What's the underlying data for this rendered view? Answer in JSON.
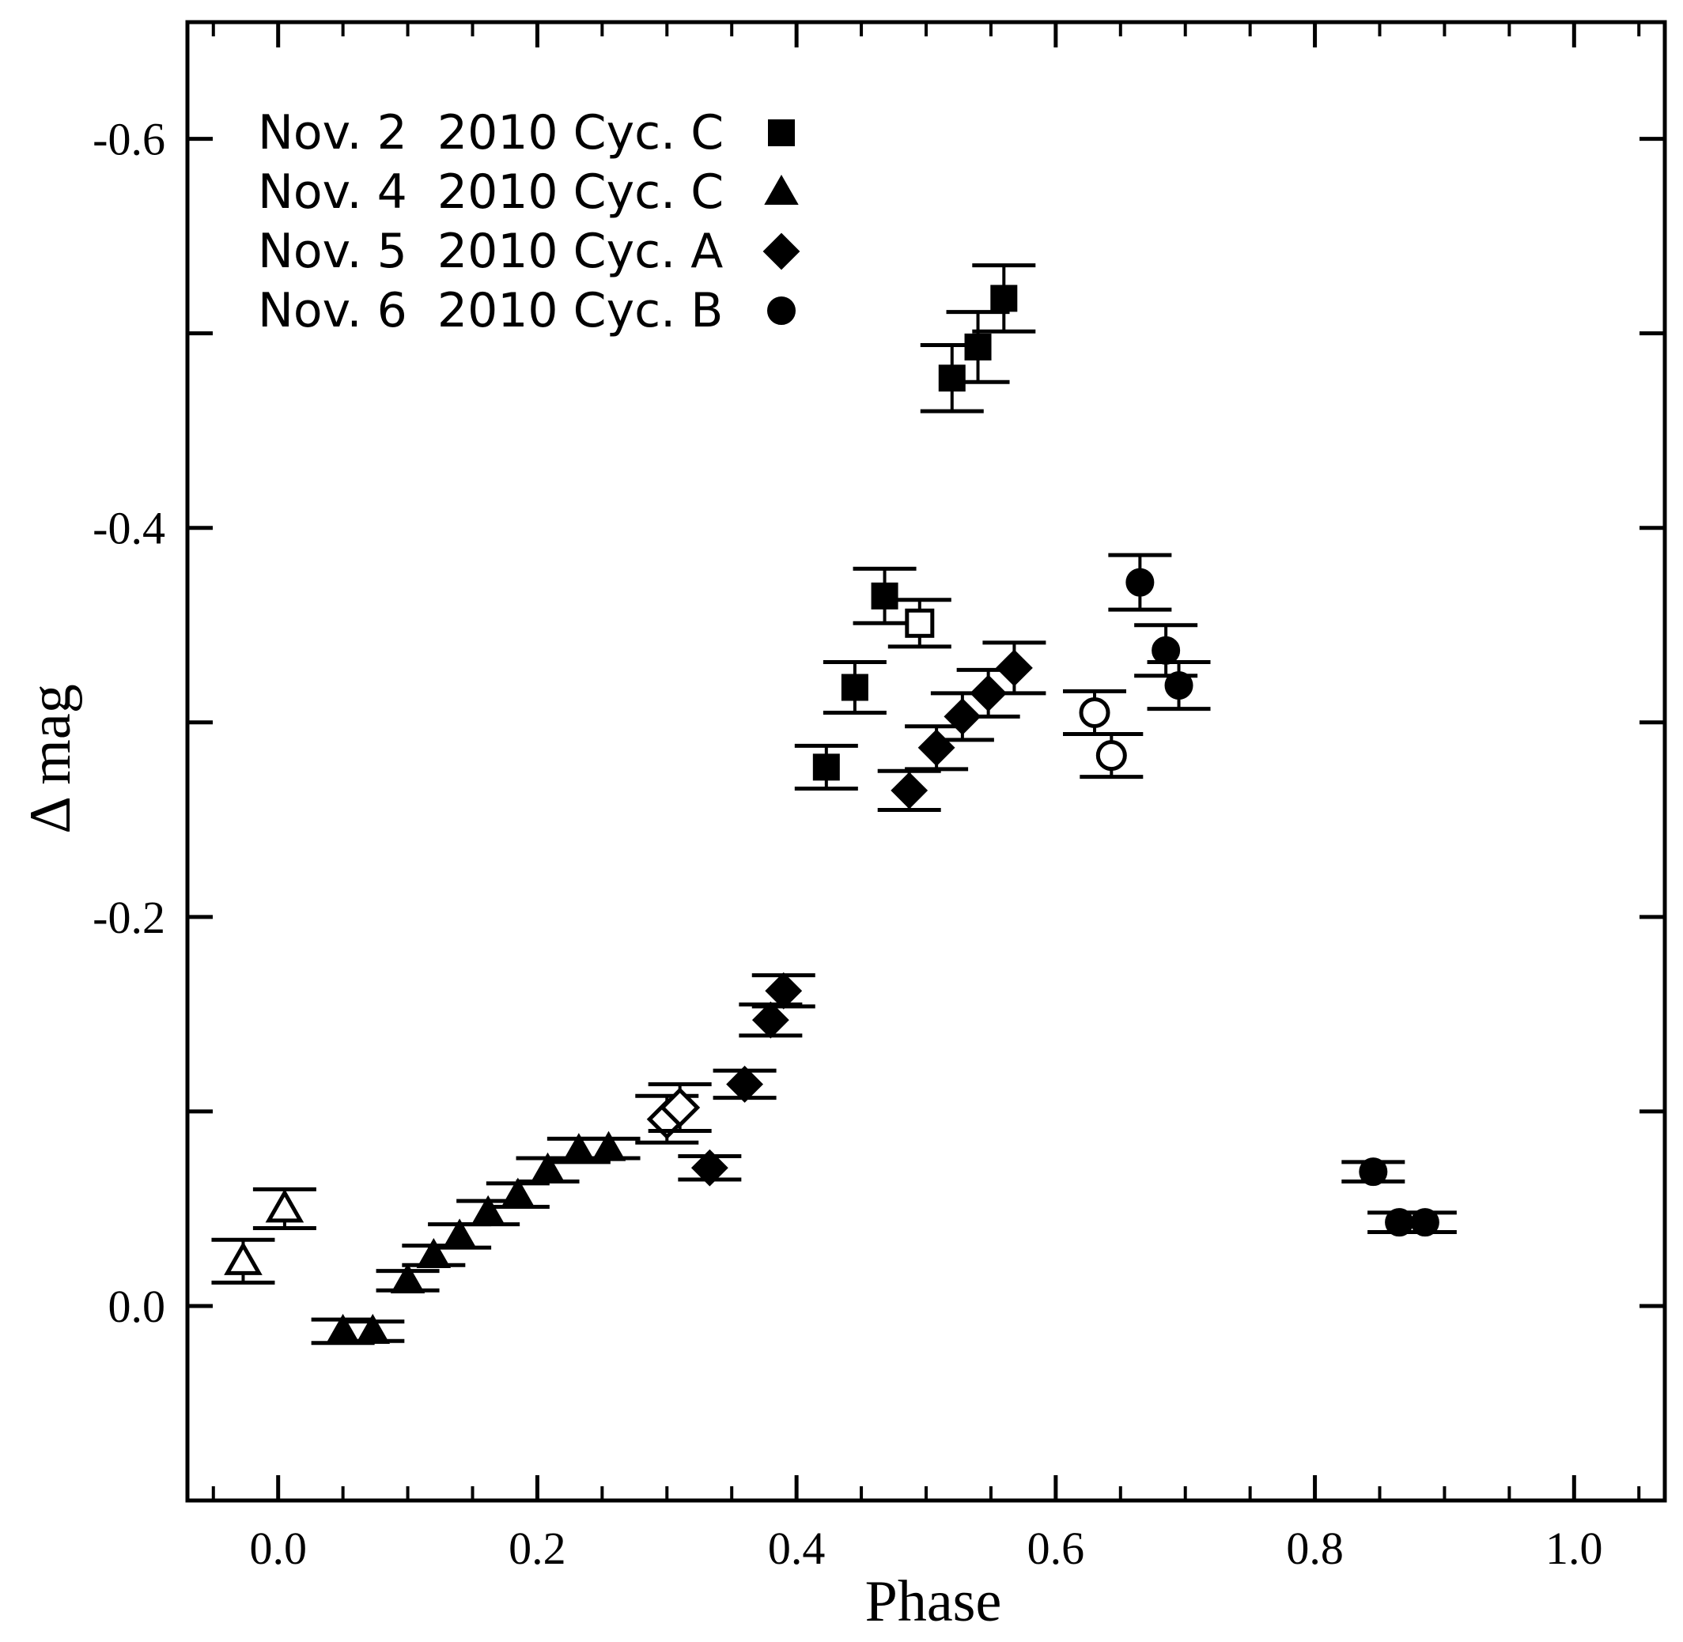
{
  "chart_data": {
    "type": "scatter",
    "title": "",
    "xlabel": "Phase",
    "ylabel": "Δ mag",
    "xlim": [
      -0.07,
      1.07
    ],
    "ylim": [
      0.1,
      -0.66
    ],
    "y_axis_inverted": true,
    "xticks": [
      {
        "value": 0.0,
        "label": "0.0"
      },
      {
        "value": 0.2,
        "label": "0.2"
      },
      {
        "value": 0.4,
        "label": "0.4"
      },
      {
        "value": 0.6,
        "label": "0.6"
      },
      {
        "value": 0.8,
        "label": "0.8"
      },
      {
        "value": 1.0,
        "label": "1.0"
      }
    ],
    "yticks": [
      {
        "value": -0.6,
        "label": "-0.6"
      },
      {
        "value": -0.4,
        "label": "-0.4"
      },
      {
        "value": -0.2,
        "label": "-0.2"
      },
      {
        "value": 0.0,
        "label": "0.0"
      }
    ],
    "grid": false,
    "legend_position": "top-left",
    "series": [
      {
        "name": "Nov. 2  2010 Cyc. C",
        "marker": "square",
        "points": [
          {
            "x": 0.423,
            "y": -0.277,
            "err": 0.011,
            "open": false
          },
          {
            "x": 0.445,
            "y": -0.318,
            "err": 0.013,
            "open": false
          },
          {
            "x": 0.468,
            "y": -0.365,
            "err": 0.014,
            "open": false
          },
          {
            "x": 0.495,
            "y": -0.351,
            "err": 0.012,
            "open": true
          },
          {
            "x": 0.52,
            "y": -0.477,
            "err": 0.017,
            "open": false
          },
          {
            "x": 0.54,
            "y": -0.493,
            "err": 0.018,
            "open": false
          },
          {
            "x": 0.56,
            "y": -0.518,
            "err": 0.017,
            "open": false
          }
        ]
      },
      {
        "name": "Nov. 4  2010 Cyc. C",
        "marker": "triangle",
        "points": [
          {
            "x": -0.027,
            "y": -0.023,
            "err": 0.011,
            "open": true
          },
          {
            "x": 0.005,
            "y": -0.05,
            "err": 0.01,
            "open": true
          },
          {
            "x": 0.05,
            "y": 0.013,
            "err": 0.006,
            "open": false
          },
          {
            "x": 0.073,
            "y": 0.013,
            "err": 0.005,
            "open": false
          },
          {
            "x": 0.1,
            "y": -0.013,
            "err": 0.005,
            "open": false
          },
          {
            "x": 0.12,
            "y": -0.026,
            "err": 0.005,
            "open": false
          },
          {
            "x": 0.14,
            "y": -0.036,
            "err": 0.006,
            "open": false
          },
          {
            "x": 0.162,
            "y": -0.048,
            "err": 0.006,
            "open": false
          },
          {
            "x": 0.185,
            "y": -0.057,
            "err": 0.006,
            "open": false
          },
          {
            "x": 0.208,
            "y": -0.07,
            "err": 0.006,
            "open": false
          },
          {
            "x": 0.232,
            "y": -0.08,
            "err": 0.006,
            "open": false
          },
          {
            "x": 0.255,
            "y": -0.081,
            "err": 0.005,
            "open": false
          }
        ]
      },
      {
        "name": "Nov. 5  2010 Cyc. A",
        "marker": "diamond",
        "points": [
          {
            "x": 0.3,
            "y": -0.096,
            "err": 0.012,
            "open": true
          },
          {
            "x": 0.31,
            "y": -0.102,
            "err": 0.012,
            "open": true
          },
          {
            "x": 0.333,
            "y": -0.071,
            "err": 0.006,
            "open": false
          },
          {
            "x": 0.36,
            "y": -0.114,
            "err": 0.007,
            "open": false
          },
          {
            "x": 0.38,
            "y": -0.147,
            "err": 0.008,
            "open": false
          },
          {
            "x": 0.39,
            "y": -0.162,
            "err": 0.008,
            "open": false
          },
          {
            "x": 0.487,
            "y": -0.265,
            "err": 0.01,
            "open": false
          },
          {
            "x": 0.508,
            "y": -0.287,
            "err": 0.011,
            "open": false
          },
          {
            "x": 0.528,
            "y": -0.303,
            "err": 0.012,
            "open": false
          },
          {
            "x": 0.548,
            "y": -0.315,
            "err": 0.012,
            "open": false
          },
          {
            "x": 0.568,
            "y": -0.328,
            "err": 0.013,
            "open": false
          }
        ]
      },
      {
        "name": "Nov. 6  2010 Cyc. B",
        "marker": "circle",
        "points": [
          {
            "x": 0.63,
            "y": -0.305,
            "err": 0.011,
            "open": true
          },
          {
            "x": 0.643,
            "y": -0.283,
            "err": 0.011,
            "open": true
          },
          {
            "x": 0.665,
            "y": -0.372,
            "err": 0.014,
            "open": false
          },
          {
            "x": 0.685,
            "y": -0.337,
            "err": 0.013,
            "open": false
          },
          {
            "x": 0.695,
            "y": -0.319,
            "err": 0.012,
            "open": false
          },
          {
            "x": 0.845,
            "y": -0.069,
            "err": 0.005,
            "open": false
          },
          {
            "x": 0.865,
            "y": -0.043,
            "err": 0.005,
            "open": false
          },
          {
            "x": 0.885,
            "y": -0.043,
            "err": 0.005,
            "open": false
          }
        ]
      }
    ]
  }
}
